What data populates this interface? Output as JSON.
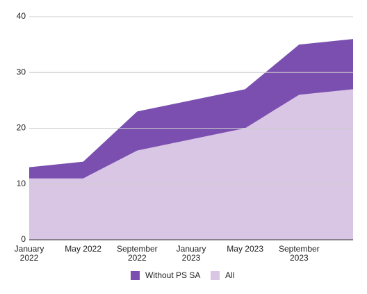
{
  "chart_data": {
    "type": "stacked-area",
    "categories": [
      "January 2022",
      "May 2022",
      "September 2022",
      "January 2023",
      "May 2023",
      "September 2023",
      null
    ],
    "series": [
      {
        "name": "Without PS SA",
        "color": "#7b4fb0",
        "values": [
          2,
          3,
          7,
          7,
          7,
          9,
          9
        ]
      },
      {
        "name": "All",
        "color": "#d9c6e4",
        "values": [
          11,
          11,
          16,
          18,
          20,
          26,
          27
        ]
      }
    ],
    "ylim": [
      0,
      40
    ],
    "yticks": [
      0,
      10,
      20,
      30,
      40
    ],
    "grid": true
  }
}
